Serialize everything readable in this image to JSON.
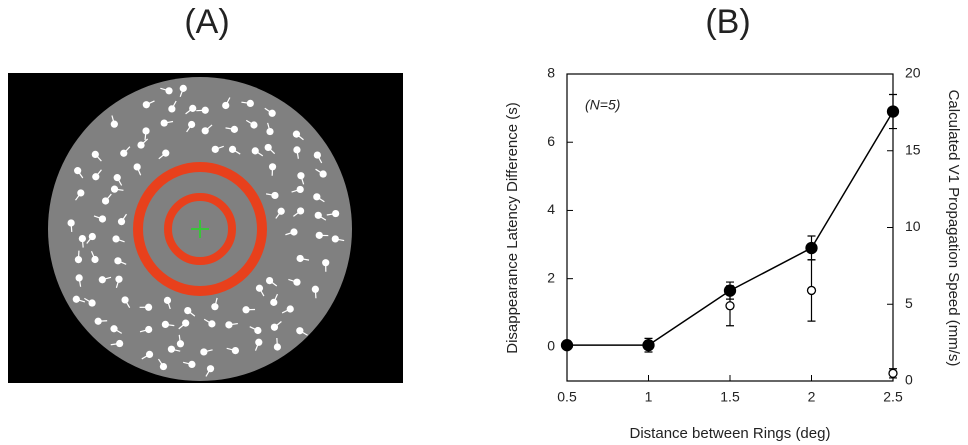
{
  "panels": [
    "(A)",
    "(B)"
  ],
  "chart_data": {
    "type": "line",
    "xlabel": "Distance between Rings (deg)",
    "ylabel": "Disappearance Latency Difference (s)",
    "y2label": "Calculated V1 Propagation Speed (mm/s)",
    "annotation": "(N=5)",
    "xlim": [
      0.5,
      2.5
    ],
    "xticks": [
      0.5,
      1,
      1.5,
      2,
      2.5
    ],
    "ylim": [
      -1,
      8
    ],
    "yticks": [
      0,
      2,
      4,
      6,
      8
    ],
    "y2lim": [
      0,
      20
    ],
    "y2ticks": [
      0,
      5,
      10,
      15,
      20
    ],
    "series": [
      {
        "x": [
          0.5,
          1,
          1.5,
          2,
          2.5
        ],
        "values": [
          0.05,
          0.05,
          1.65,
          2.9,
          6.9
        ],
        "errors": [
          0.05,
          0.2,
          0.25,
          0.35,
          0.5
        ],
        "color": "#000000",
        "marker": "filled"
      },
      {
        "x": [
          1.5,
          2,
          2.5
        ],
        "values": [
          4.9,
          5.9,
          0.5
        ],
        "errors": [
          1.3,
          2.0,
          0.3
        ],
        "color": "#000000",
        "marker": "open",
        "axis": "y2"
      }
    ]
  }
}
